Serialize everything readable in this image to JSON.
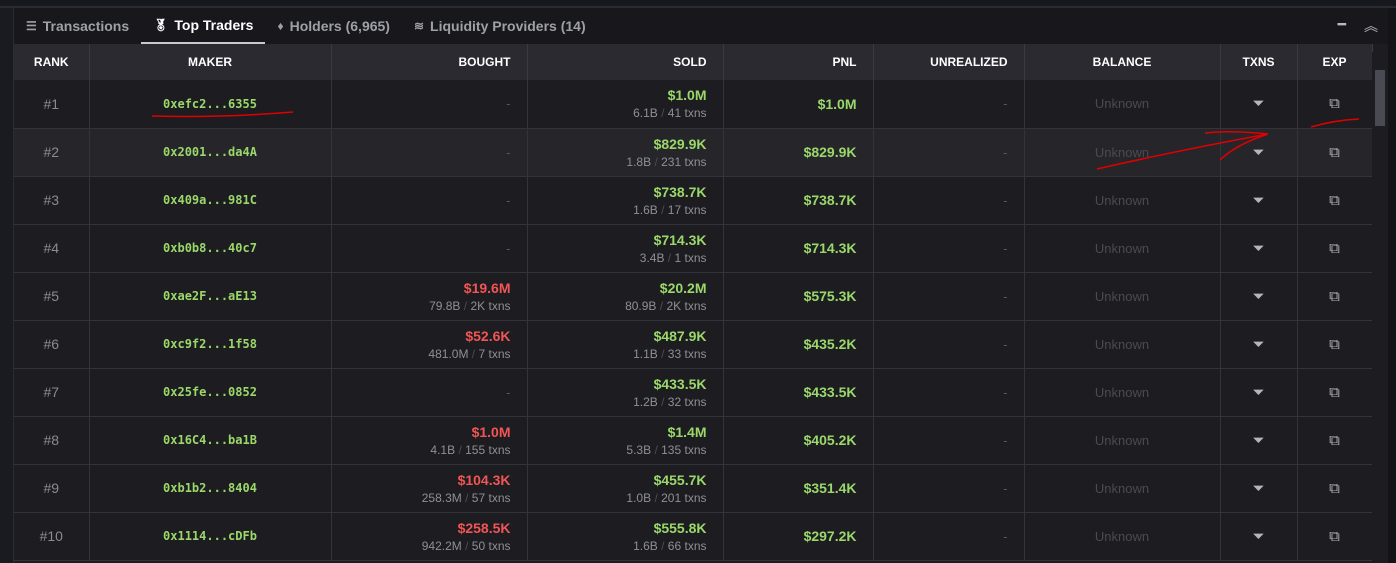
{
  "tabs": [
    {
      "label": "Transactions",
      "icon": "list-icon"
    },
    {
      "label": "Top Traders",
      "icon": "medal-icon"
    },
    {
      "label": "Holders (6,965)",
      "icon": "diamond-icon"
    },
    {
      "label": "Liquidity Providers (14)",
      "icon": "waves-icon"
    }
  ],
  "columns": [
    "RANK",
    "MAKER",
    "BOUGHT",
    "SOLD",
    "PNL",
    "UNREALIZED",
    "BALANCE",
    "TXNS",
    "EXP"
  ],
  "rows": [
    {
      "rank": "#1",
      "maker": "0xefc2...6355",
      "bought": null,
      "bought_sub_a": "",
      "bought_sub_b": "",
      "sold": "$1.0M",
      "sold_a": "6.1B",
      "sold_b": "41 txns",
      "pnl": "$1.0M",
      "unrealized": "-",
      "balance": "Unknown"
    },
    {
      "rank": "#2",
      "maker": "0x2001...da4A",
      "bought": null,
      "sold": "$829.9K",
      "sold_a": "1.8B",
      "sold_b": "231 txns",
      "pnl": "$829.9K",
      "unrealized": "-",
      "balance": "Unknown"
    },
    {
      "rank": "#3",
      "maker": "0x409a...981C",
      "bought": null,
      "sold": "$738.7K",
      "sold_a": "1.6B",
      "sold_b": "17 txns",
      "pnl": "$738.7K",
      "unrealized": "-",
      "balance": "Unknown"
    },
    {
      "rank": "#4",
      "maker": "0xb0b8...40c7",
      "bought": null,
      "sold": "$714.3K",
      "sold_a": "3.4B",
      "sold_b": "1 txns",
      "pnl": "$714.3K",
      "unrealized": "-",
      "balance": "Unknown"
    },
    {
      "rank": "#5",
      "maker": "0xae2F...aE13",
      "bought": "$19.6M",
      "bought_a": "79.8B",
      "bought_b": "2K txns",
      "sold": "$20.2M",
      "sold_a": "80.9B",
      "sold_b": "2K txns",
      "pnl": "$575.3K",
      "unrealized": "-",
      "balance": "Unknown"
    },
    {
      "rank": "#6",
      "maker": "0xc9f2...1f58",
      "bought": "$52.6K",
      "bought_a": "481.0M",
      "bought_b": "7 txns",
      "sold": "$487.9K",
      "sold_a": "1.1B",
      "sold_b": "33 txns",
      "pnl": "$435.2K",
      "unrealized": "-",
      "balance": "Unknown"
    },
    {
      "rank": "#7",
      "maker": "0x25fe...0852",
      "bought": null,
      "sold": "$433.5K",
      "sold_a": "1.2B",
      "sold_b": "32 txns",
      "pnl": "$433.5K",
      "unrealized": "-",
      "balance": "Unknown"
    },
    {
      "rank": "#8",
      "maker": "0x16C4...ba1B",
      "bought": "$1.0M",
      "bought_a": "4.1B",
      "bought_b": "155 txns",
      "sold": "$1.4M",
      "sold_a": "5.3B",
      "sold_b": "135 txns",
      "pnl": "$405.2K",
      "unrealized": "-",
      "balance": "Unknown"
    },
    {
      "rank": "#9",
      "maker": "0xb1b2...8404",
      "bought": "$104.3K",
      "bought_a": "258.3M",
      "bought_b": "57 txns",
      "sold": "$455.7K",
      "sold_a": "1.0B",
      "sold_b": "201 txns",
      "pnl": "$351.4K",
      "unrealized": "-",
      "balance": "Unknown"
    },
    {
      "rank": "#10",
      "maker": "0x1114...cDFb",
      "bought": "$258.5K",
      "bought_a": "942.2M",
      "bought_b": "50 txns",
      "sold": "$555.8K",
      "sold_a": "1.6B",
      "sold_b": "66 txns",
      "pnl": "$297.2K",
      "unrealized": "-",
      "balance": "Unknown"
    }
  ],
  "empty_dash": "-",
  "colors": {
    "positive": "#9bd86a",
    "negative": "#f25555",
    "annotation": "#e00000"
  }
}
